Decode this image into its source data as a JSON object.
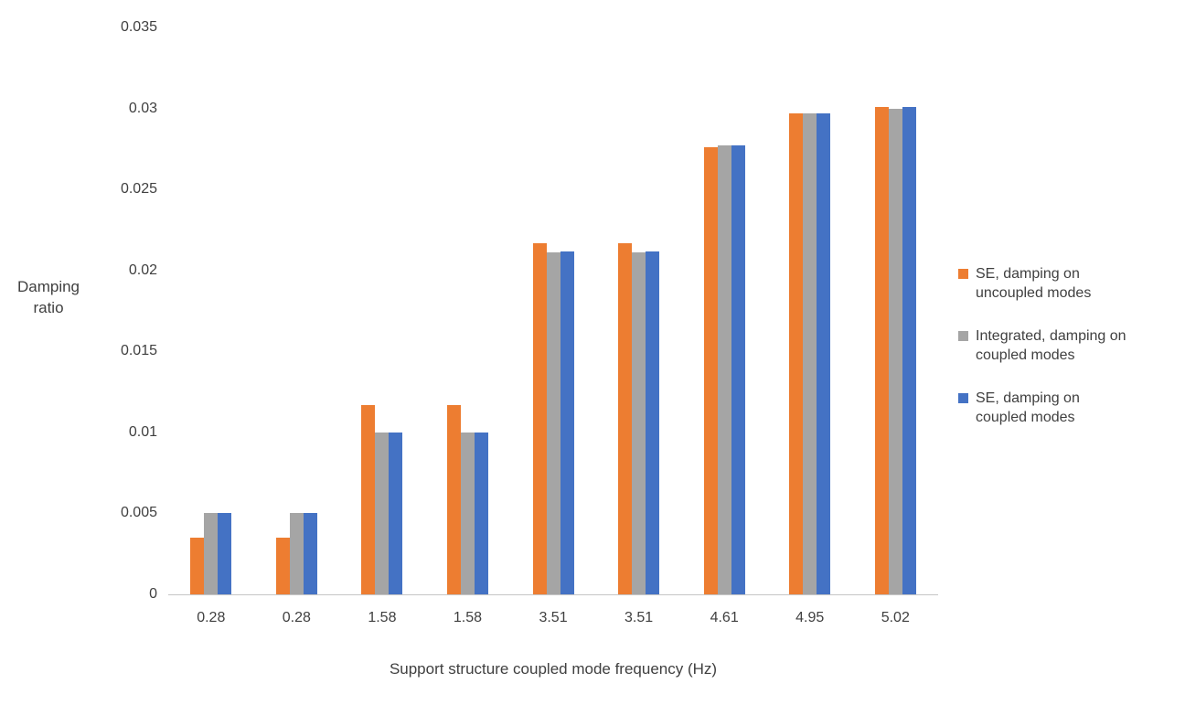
{
  "chart_data": {
    "type": "bar",
    "title": "",
    "xlabel": "Support structure coupled mode frequency (Hz)",
    "ylabel": "Damping\nratio",
    "ylim": [
      0,
      0.035
    ],
    "ytick_labels": [
      "0",
      "0.005",
      "0.01",
      "0.015",
      "0.02",
      "0.025",
      "0.03",
      "0.035"
    ],
    "categories": [
      "0.28",
      "0.28",
      "1.58",
      "1.58",
      "3.51",
      "3.51",
      "4.61",
      "4.95",
      "5.02"
    ],
    "grid": false,
    "legend_position": "right",
    "series": [
      {
        "id": "se-uncoupled",
        "name": "SE, damping on uncoupled modes",
        "color": "#ED7D31",
        "values": [
          0.0035,
          0.0035,
          0.0117,
          0.0117,
          0.0217,
          0.0217,
          0.0276,
          0.0297,
          0.0301
        ]
      },
      {
        "id": "integrated-coupled",
        "name": "Integrated, damping on coupled modes",
        "color": "#A5A5A5",
        "values": [
          0.005,
          0.005,
          0.01,
          0.01,
          0.0211,
          0.0211,
          0.0277,
          0.0297,
          0.03
        ]
      },
      {
        "id": "se-coupled",
        "name": "SE, damping on coupled modes",
        "color": "#4472C4",
        "values": [
          0.005,
          0.005,
          0.01,
          0.01,
          0.0212,
          0.0212,
          0.0277,
          0.0297,
          0.0301
        ]
      }
    ]
  }
}
